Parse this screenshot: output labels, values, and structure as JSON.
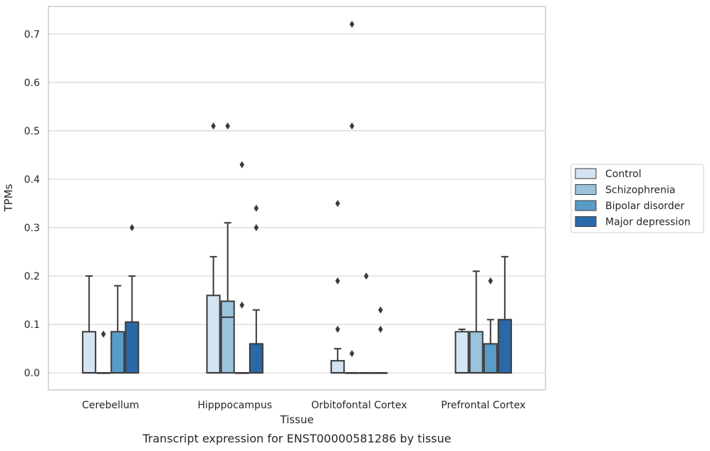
{
  "caption": "Transcript expression for ENST00000581286 by tissue",
  "chart_data": {
    "type": "box",
    "xlabel": "Tissue",
    "ylabel": "TPMs",
    "categories": [
      "Cerebellum",
      "Hipppocampus",
      "Orbitofontal Cortex",
      "Prefrontal Cortex"
    ],
    "ylim": [
      -0.035,
      0.757
    ],
    "yticks": [
      0.0,
      0.1,
      0.2,
      0.3,
      0.4,
      0.5,
      0.6,
      0.7
    ],
    "yticklabels": [
      "0.0",
      "0.1",
      "0.2",
      "0.3",
      "0.4",
      "0.5",
      "0.6",
      "0.7"
    ],
    "grid": true,
    "legend_position": "right",
    "series": [
      {
        "name": "Control",
        "color": "#d4e4f2",
        "boxes": [
          {
            "q1": 0.0,
            "median": 0.0,
            "q3": 0.085,
            "whisker_low": 0.0,
            "whisker_high": 0.2,
            "outliers": []
          },
          {
            "q1": 0.0,
            "median": 0.0,
            "q3": 0.16,
            "whisker_low": 0.0,
            "whisker_high": 0.24,
            "outliers": [
              0.51
            ]
          },
          {
            "q1": 0.0,
            "median": 0.0,
            "q3": 0.025,
            "whisker_low": 0.0,
            "whisker_high": 0.05,
            "outliers": [
              0.35,
              0.19,
              0.09
            ]
          },
          {
            "q1": 0.0,
            "median": 0.0,
            "q3": 0.085,
            "whisker_low": 0.0,
            "whisker_high": 0.09,
            "outliers": []
          }
        ]
      },
      {
        "name": "Schizophrenia",
        "color": "#9ac3dc",
        "boxes": [
          {
            "q1": 0.0,
            "median": 0.0,
            "q3": 0.0,
            "whisker_low": 0.0,
            "whisker_high": 0.0,
            "outliers": [
              0.08
            ]
          },
          {
            "q1": 0.0,
            "median": 0.115,
            "q3": 0.148,
            "whisker_low": 0.0,
            "whisker_high": 0.31,
            "outliers": [
              0.51
            ]
          },
          {
            "q1": 0.0,
            "median": 0.0,
            "q3": 0.0,
            "whisker_low": 0.0,
            "whisker_high": 0.0,
            "outliers": [
              0.72,
              0.51,
              0.04
            ]
          },
          {
            "q1": 0.0,
            "median": 0.0,
            "q3": 0.085,
            "whisker_low": 0.0,
            "whisker_high": 0.21,
            "outliers": []
          }
        ]
      },
      {
        "name": "Bipolar disorder",
        "color": "#5a9cc8",
        "boxes": [
          {
            "q1": 0.0,
            "median": 0.0,
            "q3": 0.085,
            "whisker_low": 0.0,
            "whisker_high": 0.18,
            "outliers": []
          },
          {
            "q1": 0.0,
            "median": 0.0,
            "q3": 0.0,
            "whisker_low": 0.0,
            "whisker_high": 0.0,
            "outliers": [
              0.43,
              0.14
            ]
          },
          {
            "q1": 0.0,
            "median": 0.0,
            "q3": 0.0,
            "whisker_low": 0.0,
            "whisker_high": 0.0,
            "outliers": [
              0.2
            ]
          },
          {
            "q1": 0.0,
            "median": 0.0,
            "q3": 0.06,
            "whisker_low": 0.0,
            "whisker_high": 0.11,
            "outliers": [
              0.19
            ]
          }
        ]
      },
      {
        "name": "Major depression",
        "color": "#2a69a8",
        "boxes": [
          {
            "q1": 0.0,
            "median": 0.0,
            "q3": 0.105,
            "whisker_low": 0.0,
            "whisker_high": 0.2,
            "outliers": [
              0.3
            ]
          },
          {
            "q1": 0.0,
            "median": 0.0,
            "q3": 0.06,
            "whisker_low": 0.0,
            "whisker_high": 0.13,
            "outliers": [
              0.34,
              0.3
            ]
          },
          {
            "q1": 0.0,
            "median": 0.0,
            "q3": 0.0,
            "whisker_low": 0.0,
            "whisker_high": 0.0,
            "outliers": [
              0.13,
              0.09
            ]
          },
          {
            "q1": 0.0,
            "median": 0.0,
            "q3": 0.11,
            "whisker_low": 0.0,
            "whisker_high": 0.24,
            "outliers": []
          }
        ]
      }
    ]
  }
}
